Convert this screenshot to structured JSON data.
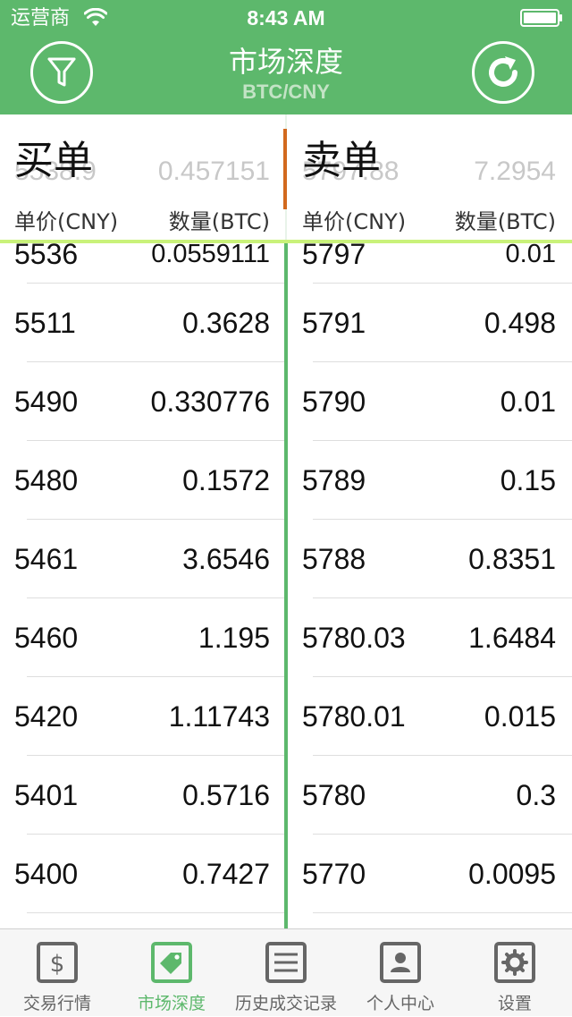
{
  "status_bar": {
    "carrier": "运营商",
    "time": "8:43 AM"
  },
  "nav": {
    "title": "市场深度",
    "subtitle": "BTC/CNY",
    "left_icon": "filter-icon",
    "right_icon": "refresh-icon"
  },
  "buy": {
    "title": "买单",
    "ghost_price": "5538.9",
    "ghost_qty": "0.457151",
    "price_header": "单价(CNY)",
    "qty_header": "数量(BTC)",
    "partial_row": {
      "price": "5536",
      "qty": "0.0559111"
    },
    "rows": [
      {
        "price": "5511",
        "qty": "0.3628"
      },
      {
        "price": "5490",
        "qty": "0.330776"
      },
      {
        "price": "5480",
        "qty": "0.1572"
      },
      {
        "price": "5461",
        "qty": "3.6546"
      },
      {
        "price": "5460",
        "qty": "1.195"
      },
      {
        "price": "5420",
        "qty": "1.11743"
      },
      {
        "price": "5401",
        "qty": "0.5716"
      },
      {
        "price": "5400",
        "qty": "0.7427"
      }
    ]
  },
  "sell": {
    "title": "卖单",
    "ghost_price": "5797.88",
    "ghost_qty": "7.2954",
    "price_header": "单价(CNY)",
    "qty_header": "数量(BTC)",
    "partial_row": {
      "price": "5797",
      "qty": "0.01"
    },
    "rows": [
      {
        "price": "5791",
        "qty": "0.498"
      },
      {
        "price": "5790",
        "qty": "0.01"
      },
      {
        "price": "5789",
        "qty": "0.15"
      },
      {
        "price": "5788",
        "qty": "0.8351"
      },
      {
        "price": "5780.03",
        "qty": "1.6484"
      },
      {
        "price": "5780.01",
        "qty": "0.015"
      },
      {
        "price": "5780",
        "qty": "0.3"
      },
      {
        "price": "5770",
        "qty": "0.0095"
      }
    ]
  },
  "tabs": [
    {
      "label": "交易行情",
      "icon": "dollar-icon",
      "active": false
    },
    {
      "label": "市场深度",
      "icon": "tag-icon",
      "active": true
    },
    {
      "label": "历史成交记录",
      "icon": "list-icon",
      "active": false
    },
    {
      "label": "个人中心",
      "icon": "user-icon",
      "active": false
    },
    {
      "label": "设置",
      "icon": "gear-icon",
      "active": false
    }
  ],
  "colors": {
    "primary_green": "#5db86c",
    "accent_line": "#c9f27a",
    "divider_accent": "#d2691e"
  }
}
